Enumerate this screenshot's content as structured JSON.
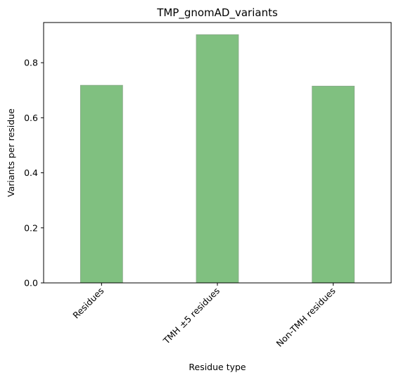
{
  "chart_data": {
    "type": "bar",
    "title": "TMP_gnomAD_variants",
    "xlabel": "Residue type",
    "ylabel": "Variants per residue",
    "categories": [
      "Residues",
      "TMH ±5 residues",
      "Non-TMH residues"
    ],
    "values": [
      0.718,
      0.902,
      0.715
    ],
    "ylim": [
      0,
      0.946
    ],
    "yticks": [
      "0.0",
      "0.2",
      "0.4",
      "0.6",
      "0.8"
    ],
    "grid": false,
    "bar_color": "#80c080"
  }
}
